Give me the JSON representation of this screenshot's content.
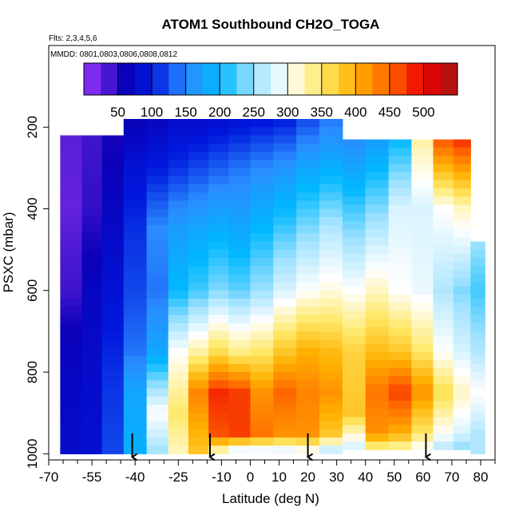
{
  "chart_data": {
    "type": "heatmap",
    "title": "ATOM1 Southbound CH2O_TOGA",
    "annotations": [
      "Flts: 2,3,4,5,6",
      "MMDD: 0801,0803,0806,0808,0812"
    ],
    "xlabel": "Latitude (deg N)",
    "ylabel": "PSXC (mbar)",
    "xlim": [
      -70,
      85
    ],
    "ylim": [
      1015,
      0
    ],
    "x_ticks": [
      -70,
      -55,
      -40,
      -25,
      -10,
      0,
      10,
      20,
      30,
      40,
      50,
      60,
      70,
      80
    ],
    "x_minor_ticks": [
      -65,
      -60,
      -50,
      -45,
      -35,
      -30,
      -20,
      -15,
      -5,
      5,
      15,
      25,
      35,
      45,
      55,
      65,
      75,
      85
    ],
    "y_ticks": [
      200,
      400,
      600,
      800,
      1000
    ],
    "colorbar": {
      "ticks": [
        50,
        100,
        150,
        200,
        250,
        300,
        350,
        400,
        450,
        500
      ],
      "range": [
        0,
        550
      ],
      "band_edges": [
        0,
        25,
        50,
        75,
        100,
        125,
        150,
        175,
        200,
        225,
        250,
        275,
        300,
        325,
        350,
        375,
        400,
        425,
        450,
        475,
        500,
        525,
        550
      ],
      "stops": [
        {
          "v": 0,
          "c": "#9933ff"
        },
        {
          "v": 30,
          "c": "#5a1ed8"
        },
        {
          "v": 60,
          "c": "#0a00b8"
        },
        {
          "v": 100,
          "c": "#0018dd"
        },
        {
          "v": 150,
          "c": "#2a8cff"
        },
        {
          "v": 200,
          "c": "#00b8ff"
        },
        {
          "v": 250,
          "c": "#9fe2ff"
        },
        {
          "v": 300,
          "c": "#ffffff"
        },
        {
          "v": 350,
          "c": "#ffe866"
        },
        {
          "v": 400,
          "c": "#ffb000"
        },
        {
          "v": 450,
          "c": "#ff6600"
        },
        {
          "v": 500,
          "c": "#ee0000"
        },
        {
          "v": 550,
          "c": "#a31515"
        }
      ]
    },
    "columns": [
      {
        "lat": -62,
        "tops": [
          220,
          480,
          715
        ],
        "p": [
          220,
          400,
          500,
          600,
          700,
          800,
          900,
          1000
        ],
        "v": [
          30,
          25,
          35,
          40,
          60,
          70,
          75,
          80
        ]
      },
      {
        "lat": -55,
        "tops": [
          220
        ],
        "p": [
          220,
          400,
          600,
          800,
          1000
        ],
        "v": [
          40,
          45,
          70,
          80,
          85
        ]
      },
      {
        "lat": -48,
        "tops": [
          220
        ],
        "p": [
          220,
          400,
          600,
          800,
          1000
        ],
        "v": [
          55,
          70,
          90,
          110,
          120
        ]
      },
      {
        "lat": -40,
        "tops": [
          180
        ],
        "p": [
          180,
          300,
          450,
          600,
          750,
          850,
          1000
        ],
        "v": [
          60,
          90,
          110,
          120,
          140,
          180,
          190
        ]
      },
      {
        "lat": -32,
        "tops": [
          180
        ],
        "p": [
          180,
          300,
          450,
          600,
          750,
          900,
          1000
        ],
        "v": [
          70,
          100,
          150,
          140,
          180,
          300,
          250
        ]
      },
      {
        "lat": -25,
        "tops": [
          180
        ],
        "p": [
          180,
          300,
          450,
          600,
          750,
          900,
          1000
        ],
        "v": [
          80,
          110,
          170,
          200,
          300,
          350,
          320
        ]
      },
      {
        "lat": -18,
        "tops": [
          180
        ],
        "p": [
          180,
          300,
          450,
          600,
          750,
          850,
          1000
        ],
        "v": [
          80,
          120,
          180,
          220,
          330,
          430,
          380
        ]
      },
      {
        "lat": -11,
        "tops": [
          180
        ],
        "p": [
          180,
          300,
          450,
          600,
          750,
          850,
          950,
          1000
        ],
        "v": [
          85,
          130,
          190,
          240,
          360,
          480,
          460,
          300
        ]
      },
      {
        "lat": -4,
        "tops": [
          180
        ],
        "p": [
          180,
          300,
          450,
          600,
          750,
          850,
          950,
          1000
        ],
        "v": [
          90,
          140,
          180,
          230,
          340,
          470,
          470,
          250
        ]
      },
      {
        "lat": 4,
        "tops": [
          180
        ],
        "p": [
          180,
          300,
          450,
          600,
          750,
          850,
          950,
          1000
        ],
        "v": [
          95,
          150,
          200,
          250,
          350,
          420,
          440,
          260
        ]
      },
      {
        "lat": 12,
        "tops": [
          180
        ],
        "p": [
          180,
          300,
          450,
          600,
          750,
          850,
          950,
          1000
        ],
        "v": [
          100,
          160,
          220,
          280,
          380,
          450,
          420,
          260
        ]
      },
      {
        "lat": 20,
        "tops": [
          180
        ],
        "p": [
          180,
          300,
          450,
          600,
          750,
          850,
          950,
          1000
        ],
        "v": [
          120,
          180,
          240,
          300,
          400,
          430,
          420,
          280
        ]
      },
      {
        "lat": 28,
        "tops": [
          180
        ],
        "p": [
          180,
          300,
          450,
          600,
          750,
          850,
          950,
          1000
        ],
        "v": [
          140,
          190,
          260,
          310,
          390,
          420,
          380,
          250
        ]
      },
      {
        "lat": 36,
        "tops": [
          230
        ],
        "p": [
          230,
          400,
          600,
          750,
          900,
          1000
        ],
        "v": [
          150,
          220,
          300,
          370,
          380,
          260
        ]
      },
      {
        "lat": 44,
        "tops": [
          230
        ],
        "p": [
          230,
          400,
          600,
          750,
          850,
          950,
          1000
        ],
        "v": [
          170,
          240,
          320,
          390,
          440,
          420,
          300
        ]
      },
      {
        "lat": 52,
        "tops": [
          230
        ],
        "p": [
          230,
          400,
          600,
          750,
          850,
          950,
          1000
        ],
        "v": [
          200,
          280,
          300,
          380,
          470,
          400,
          300
        ]
      },
      {
        "lat": 60,
        "tops": [
          230
        ],
        "p": [
          230,
          400,
          600,
          750,
          850,
          950,
          1000
        ],
        "v": [
          330,
          280,
          290,
          350,
          420,
          350,
          280
        ]
      },
      {
        "lat": 67,
        "tops": [
          230
        ],
        "p": [
          230,
          400,
          600,
          750,
          850,
          950,
          1000
        ],
        "v": [
          460,
          300,
          260,
          300,
          360,
          300,
          250
        ]
      },
      {
        "lat": 74,
        "tops": [
          230,
          480
        ],
        "p": [
          230,
          400,
          600,
          750,
          850,
          950,
          1000
        ],
        "v": [
          480,
          320,
          240,
          280,
          320,
          280,
          230
        ]
      },
      {
        "lat": 79,
        "tops": [
          480
        ],
        "p": [
          480,
          600,
          750,
          850,
          950
        ],
        "v": [
          250,
          220,
          260,
          300,
          260
        ]
      }
    ],
    "markers": [
      -41,
      -14,
      20,
      61
    ]
  }
}
